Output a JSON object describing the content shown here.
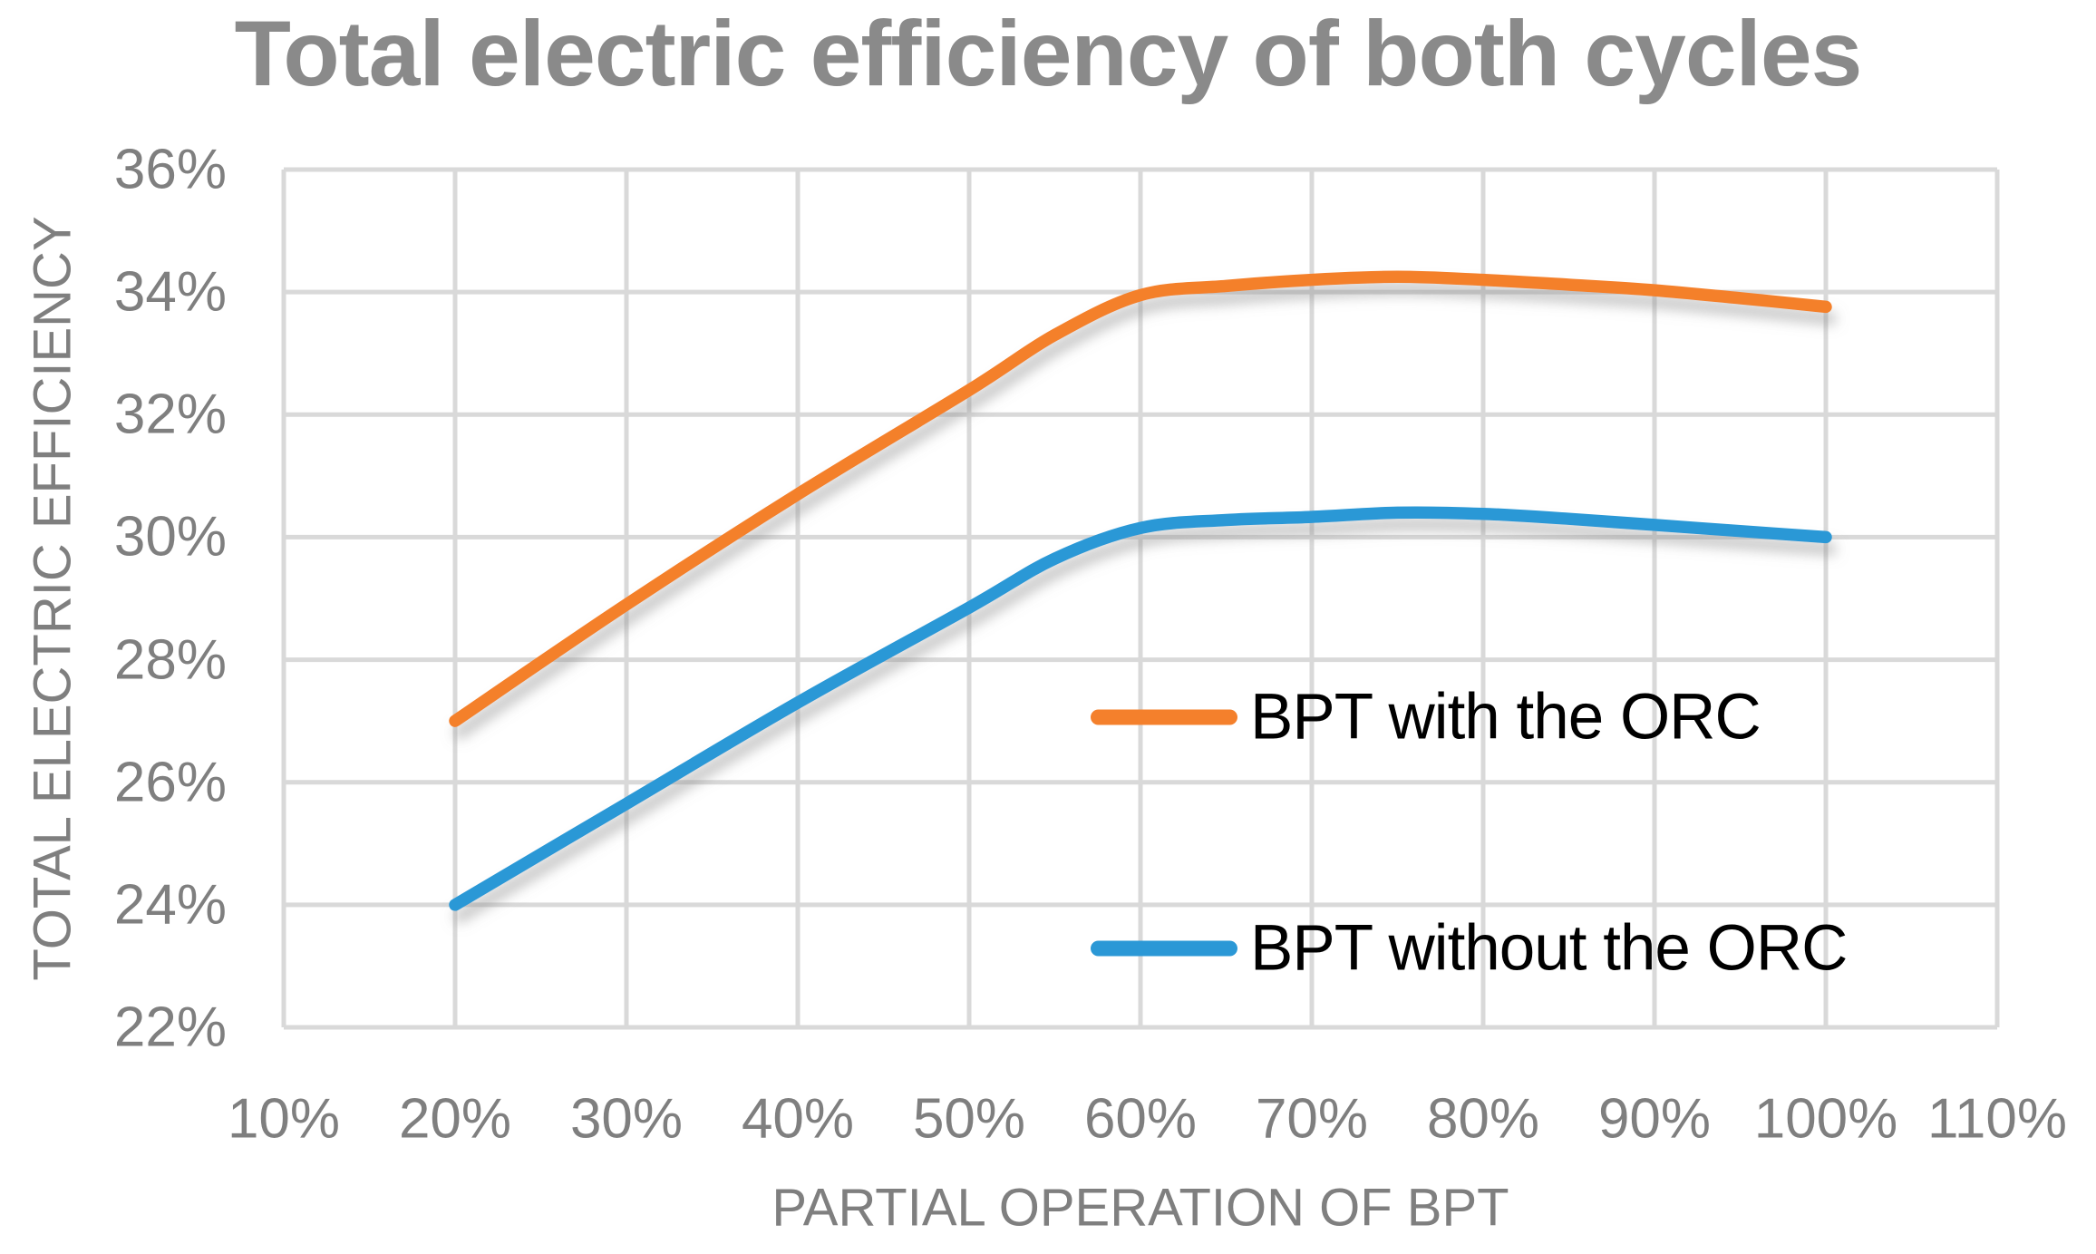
{
  "chart_data": {
    "type": "line",
    "title": "Total electric efficiency of both cycles",
    "x_axis": {
      "title": "PARTIAL OPERATION OF BPT",
      "min": 10,
      "max": 110,
      "tick_values": [
        10,
        20,
        30,
        40,
        50,
        60,
        70,
        80,
        90,
        100,
        110
      ],
      "tick_labels": [
        "10%",
        "20%",
        "30%",
        "40%",
        "50%",
        "60%",
        "70%",
        "80%",
        "90%",
        "100%",
        "110%"
      ]
    },
    "y_axis": {
      "title": "TOTAL ELECTRIC EFFICIENCY",
      "min": 22,
      "max": 36,
      "tick_values": [
        22,
        24,
        26,
        28,
        30,
        32,
        34,
        36
      ],
      "tick_labels": [
        "22%",
        "24%",
        "26%",
        "28%",
        "30%",
        "32%",
        "34%",
        "36%"
      ]
    },
    "grid": true,
    "grid_color": "#D9D9D9",
    "axis_text_color": "#7F7F7F",
    "title_color": "#8A8A8A",
    "legend_text_color": "#000000",
    "legend_position": "inside-right",
    "series": [
      {
        "name": "BPT with the ORC",
        "color": "#F4802C",
        "x": [
          20,
          30,
          40,
          50,
          55,
          60,
          65,
          70,
          75,
          80,
          85,
          90,
          95,
          100
        ],
        "values": [
          27.0,
          28.9,
          30.7,
          32.4,
          33.3,
          33.95,
          34.1,
          34.2,
          34.25,
          34.2,
          34.12,
          34.03,
          33.9,
          33.76
        ]
      },
      {
        "name": "BPT without the ORC",
        "color": "#2B98D6",
        "x": [
          20,
          30,
          40,
          50,
          55,
          60,
          65,
          70,
          75,
          80,
          85,
          90,
          95,
          100
        ],
        "values": [
          24.0,
          25.65,
          27.3,
          28.85,
          29.65,
          30.15,
          30.28,
          30.33,
          30.4,
          30.38,
          30.3,
          30.2,
          30.1,
          30.0
        ]
      }
    ]
  }
}
